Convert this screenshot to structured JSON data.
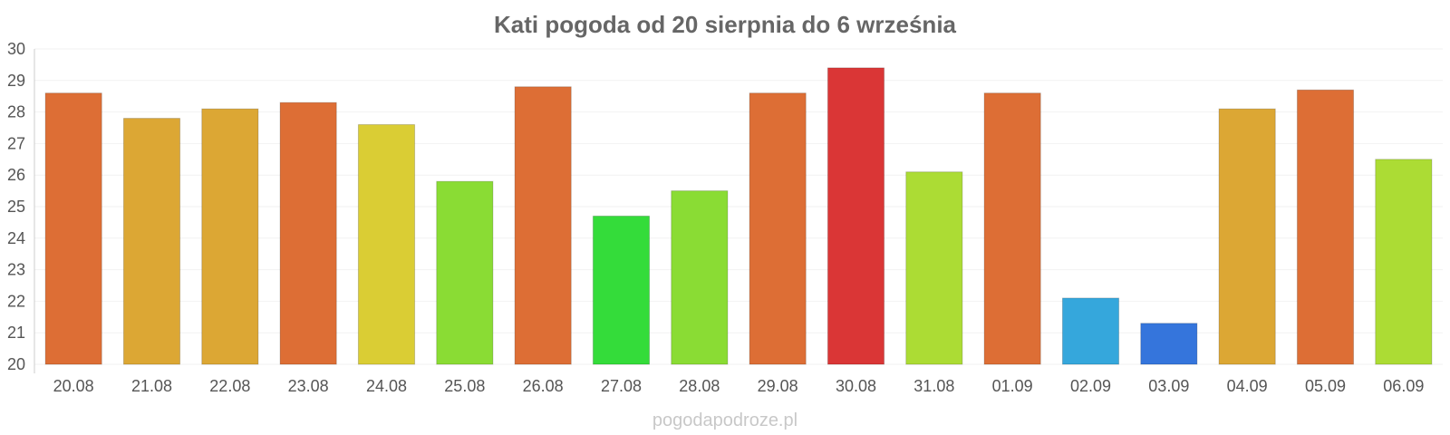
{
  "chart_data": {
    "type": "bar",
    "title": "Kati pogoda od 20 sierpnia do 6 września",
    "xlabel": "",
    "ylabel": "",
    "ylim": [
      20,
      30
    ],
    "yticks": [
      "20",
      "21",
      "22",
      "23",
      "24",
      "25",
      "26",
      "27",
      "28",
      "29",
      "30"
    ],
    "grid": true,
    "legend": "none",
    "categories": [
      "20.08",
      "21.08",
      "22.08",
      "23.08",
      "24.08",
      "25.08",
      "26.08",
      "27.08",
      "28.08",
      "29.08",
      "30.08",
      "31.08",
      "01.09",
      "02.09",
      "03.09",
      "04.09",
      "05.09",
      "06.09"
    ],
    "values": [
      28.6,
      27.8,
      28.1,
      28.3,
      27.6,
      25.8,
      28.8,
      24.7,
      25.5,
      28.6,
      29.4,
      26.1,
      28.6,
      22.1,
      21.3,
      28.1,
      28.7,
      26.5
    ],
    "colors": [
      "#dd6e35",
      "#dca734",
      "#dca734",
      "#dd6e35",
      "#dacd34",
      "#8adc34",
      "#dd6e35",
      "#34dc3a",
      "#8adc34",
      "#dd6e35",
      "#da3636",
      "#acdc34",
      "#dd6e35",
      "#35a7dc",
      "#3575dc",
      "#dca734",
      "#dd6e35",
      "#acdc34"
    ]
  },
  "credit": "pogodapodroze.pl",
  "style": {
    "title_color": "#666666",
    "tick_color": "#555555",
    "grid_color": "#f2f2f2",
    "axis_color": "#cccccc",
    "credit_color": "#c8c8c8"
  }
}
